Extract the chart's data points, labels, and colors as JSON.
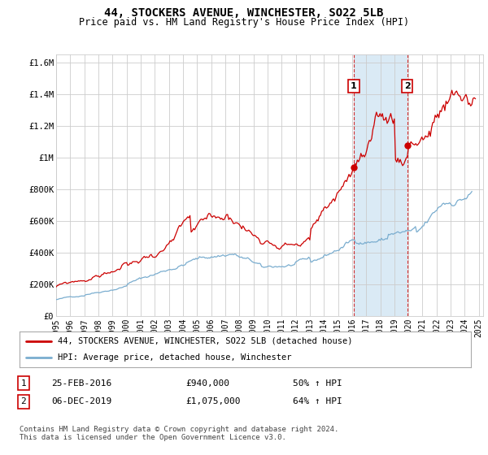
{
  "title": "44, STOCKERS AVENUE, WINCHESTER, SO22 5LB",
  "subtitle": "Price paid vs. HM Land Registry's House Price Index (HPI)",
  "xlim": [
    1995.0,
    2025.3
  ],
  "ylim": [
    0,
    1650000
  ],
  "yticks": [
    0,
    200000,
    400000,
    600000,
    800000,
    1000000,
    1200000,
    1400000,
    1600000
  ],
  "ytick_labels": [
    "£0",
    "£200K",
    "£400K",
    "£600K",
    "£800K",
    "£1M",
    "£1.2M",
    "£1.4M",
    "£1.6M"
  ],
  "xtick_years": [
    1995,
    1996,
    1997,
    1998,
    1999,
    2000,
    2001,
    2002,
    2003,
    2004,
    2005,
    2006,
    2007,
    2008,
    2009,
    2010,
    2011,
    2012,
    2013,
    2014,
    2015,
    2016,
    2017,
    2018,
    2019,
    2020,
    2021,
    2022,
    2023,
    2024,
    2025
  ],
  "legend_line1": "44, STOCKERS AVENUE, WINCHESTER, SO22 5LB (detached house)",
  "legend_line2": "HPI: Average price, detached house, Winchester",
  "sale1_label": "1",
  "sale1_date": "25-FEB-2016",
  "sale1_price": "£940,000",
  "sale1_hpi": "50% ↑ HPI",
  "sale2_label": "2",
  "sale2_date": "06-DEC-2019",
  "sale2_price": "£1,075,000",
  "sale2_hpi": "64% ↑ HPI",
  "footer": "Contains HM Land Registry data © Crown copyright and database right 2024.\nThis data is licensed under the Open Government Licence v3.0.",
  "red_color": "#cc0000",
  "blue_color": "#7aadcf",
  "sale_marker_color": "#cc0000",
  "highlight_box_color": "#daeaf5",
  "grid_color": "#cccccc",
  "background_color": "#ffffff",
  "sale1_x": 2016.12,
  "sale1_y": 940000,
  "sale2_x": 2019.92,
  "sale2_y": 1075000,
  "highlight_x1": 2016.12,
  "highlight_x2": 2019.92
}
